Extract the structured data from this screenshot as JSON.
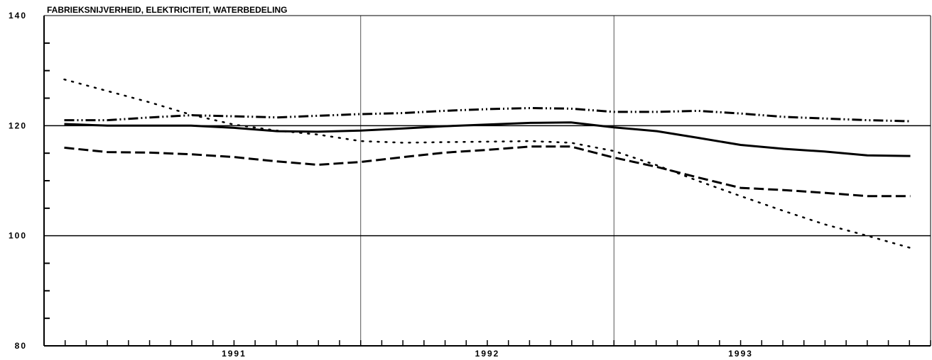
{
  "chart_data": {
    "type": "line",
    "title": "FABRIEKSNIJVERHEID, ELEKTRICITEIT, WATERBEDELING",
    "xlabel": "",
    "ylabel": "",
    "xlim": [
      1990.25,
      1993.75
    ],
    "ylim": [
      80,
      140
    ],
    "y_ticks": [
      80,
      100,
      120,
      140
    ],
    "y_tick_labels": [
      "80",
      "100",
      "120",
      "140"
    ],
    "x_tick_labels": [
      {
        "x": 1991.0,
        "label": "1991"
      },
      {
        "x": 1992.0,
        "label": "1992"
      },
      {
        "x": 1993.0,
        "label": "1993"
      }
    ],
    "x_gridlines": [
      1991.5,
      1992.5
    ],
    "y_reference_lines": [
      100,
      120
    ],
    "grid": false,
    "series": [
      {
        "style": "dash-dot-dot",
        "x": [
          1990.33,
          1990.5,
          1990.67,
          1990.83,
          1991.0,
          1991.17,
          1991.33,
          1991.5,
          1991.67,
          1991.83,
          1992.0,
          1992.17,
          1992.33,
          1992.5,
          1992.67,
          1992.83,
          1993.0,
          1993.17,
          1993.33,
          1993.5,
          1993.67
        ],
        "values": [
          121.0,
          121.0,
          121.5,
          121.9,
          121.7,
          121.5,
          121.8,
          122.1,
          122.3,
          122.7,
          123.0,
          123.2,
          123.1,
          122.5,
          122.5,
          122.7,
          122.2,
          121.6,
          121.3,
          121.0,
          120.8
        ]
      },
      {
        "style": "solid",
        "x": [
          1990.33,
          1990.5,
          1990.67,
          1990.83,
          1991.0,
          1991.17,
          1991.33,
          1991.5,
          1991.67,
          1991.83,
          1992.0,
          1992.17,
          1992.33,
          1992.5,
          1992.67,
          1992.83,
          1993.0,
          1993.17,
          1993.33,
          1993.5,
          1993.67
        ],
        "values": [
          120.3,
          120.0,
          120.0,
          120.0,
          119.6,
          119.0,
          118.9,
          119.1,
          119.5,
          119.9,
          120.2,
          120.5,
          120.6,
          119.7,
          119.0,
          117.8,
          116.5,
          115.8,
          115.3,
          114.6,
          114.5
        ]
      },
      {
        "style": "dashed",
        "x": [
          1990.33,
          1990.5,
          1990.67,
          1990.83,
          1991.0,
          1991.17,
          1991.33,
          1991.5,
          1991.67,
          1991.83,
          1992.0,
          1992.17,
          1992.33,
          1992.5,
          1992.67,
          1992.83,
          1993.0,
          1993.17,
          1993.33,
          1993.5,
          1993.67
        ],
        "values": [
          116.0,
          115.2,
          115.1,
          114.8,
          114.3,
          113.5,
          112.9,
          113.4,
          114.3,
          115.1,
          115.6,
          116.2,
          116.2,
          114.2,
          112.5,
          110.6,
          108.7,
          108.3,
          107.8,
          107.2,
          107.2
        ]
      },
      {
        "style": "dotted",
        "x": [
          1990.33,
          1990.5,
          1990.67,
          1990.83,
          1991.0,
          1991.17,
          1991.33,
          1991.5,
          1991.67,
          1991.83,
          1992.0,
          1992.17,
          1992.33,
          1992.5,
          1992.67,
          1992.83,
          1993.0,
          1993.17,
          1993.33,
          1993.5,
          1993.67
        ],
        "values": [
          128.4,
          126.3,
          124.2,
          122.0,
          120.2,
          119.1,
          118.4,
          117.2,
          116.9,
          117.0,
          117.1,
          117.2,
          116.9,
          115.4,
          112.8,
          110.0,
          107.2,
          104.5,
          102.1,
          100.0,
          97.8
        ]
      }
    ]
  }
}
